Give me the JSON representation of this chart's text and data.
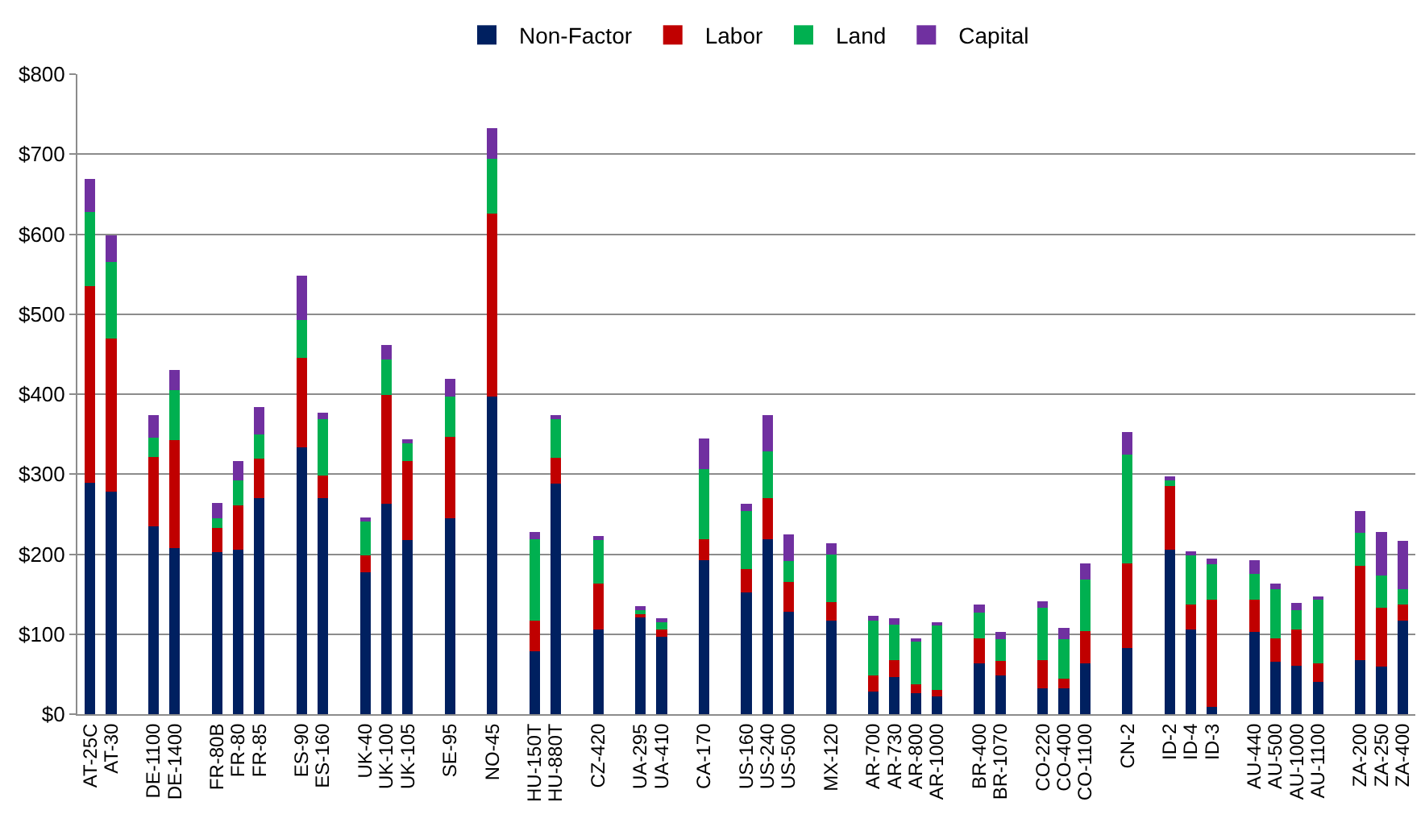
{
  "chart_data": {
    "type": "bar",
    "stacked": true,
    "categories": [
      "AT-25C",
      "AT-30",
      null,
      "DE-1100",
      "DE-1400",
      null,
      "FR-80B",
      "FR-80",
      "FR-85",
      null,
      "ES-90",
      "ES-160",
      null,
      "UK-40",
      "UK-100",
      "UK-105",
      null,
      "SE-95",
      null,
      "NO-45",
      null,
      "HU-150T",
      "HU-880T",
      null,
      "CZ-420",
      null,
      "UA-295",
      "UA-410",
      null,
      "CA-170",
      null,
      "US-160",
      "US-240",
      "US-500",
      null,
      "MX-120",
      null,
      "AR-700",
      "AR-730",
      "AR-800",
      "AR-1000",
      null,
      "BR-400",
      "BR-1070",
      null,
      "CO-220",
      "CO-400",
      "CO-1100",
      null,
      "CN-2",
      null,
      "ID-2",
      "ID-4",
      "ID-3",
      null,
      "AU-440",
      "AU-500",
      "AU-1000",
      "AU-1100",
      null,
      "ZA-200",
      "ZA-250",
      "ZA-400"
    ],
    "series": [
      {
        "name": "Non-Factor",
        "color": "#002060",
        "values": [
          289,
          278,
          null,
          235,
          208,
          null,
          203,
          206,
          270,
          null,
          334,
          270,
          null,
          177,
          263,
          218,
          null,
          245,
          null,
          397,
          null,
          79,
          288,
          null,
          106,
          null,
          121,
          97,
          null,
          192,
          null,
          152,
          219,
          128,
          null,
          117,
          null,
          28,
          46,
          26,
          22,
          null,
          63,
          48,
          null,
          32,
          32,
          63,
          null,
          83,
          null,
          206,
          106,
          9,
          null,
          103,
          66,
          60,
          40,
          null,
          68,
          59,
          117
        ]
      },
      {
        "name": "Labor",
        "color": "#c00000",
        "values": [
          246,
          192,
          null,
          86,
          135,
          null,
          30,
          55,
          49,
          null,
          111,
          28,
          null,
          22,
          136,
          98,
          null,
          102,
          null,
          229,
          null,
          38,
          32,
          null,
          57,
          null,
          4,
          9,
          null,
          27,
          null,
          29,
          51,
          37,
          null,
          23,
          null,
          20,
          22,
          11,
          8,
          null,
          32,
          19,
          null,
          36,
          12,
          41,
          null,
          105,
          null,
          79,
          31,
          134,
          null,
          40,
          29,
          46,
          23,
          null,
          117,
          74,
          20
        ]
      },
      {
        "name": "Land",
        "color": "#00b050",
        "values": [
          93,
          95,
          null,
          25,
          62,
          null,
          12,
          31,
          31,
          null,
          48,
          71,
          null,
          42,
          44,
          23,
          null,
          50,
          null,
          68,
          null,
          102,
          49,
          null,
          56,
          null,
          5,
          9,
          null,
          87,
          null,
          73,
          58,
          26,
          null,
          60,
          null,
          69,
          44,
          55,
          81,
          null,
          32,
          27,
          null,
          65,
          50,
          64,
          null,
          136,
          null,
          8,
          62,
          44,
          null,
          32,
          61,
          24,
          82,
          null,
          42,
          40,
          19
        ]
      },
      {
        "name": "Capital",
        "color": "#7030a0",
        "values": [
          41,
          34,
          null,
          28,
          25,
          null,
          19,
          24,
          34,
          null,
          55,
          8,
          null,
          5,
          18,
          5,
          null,
          22,
          null,
          39,
          null,
          9,
          5,
          null,
          4,
          null,
          5,
          5,
          null,
          39,
          null,
          9,
          46,
          34,
          null,
          14,
          null,
          6,
          8,
          2,
          3,
          null,
          10,
          9,
          null,
          8,
          14,
          20,
          null,
          29,
          null,
          4,
          5,
          7,
          null,
          17,
          7,
          9,
          1,
          null,
          27,
          55,
          61
        ]
      }
    ],
    "ylim": [
      0,
      800
    ],
    "yticks": [
      {
        "value": 0,
        "label": "$0"
      },
      {
        "value": 100,
        "label": "$100"
      },
      {
        "value": 200,
        "label": "$200"
      },
      {
        "value": 300,
        "label": "$300"
      },
      {
        "value": 400,
        "label": "$400"
      },
      {
        "value": 500,
        "label": "$500"
      },
      {
        "value": 600,
        "label": "$600"
      },
      {
        "value": 700,
        "label": "$700"
      },
      {
        "value": 800,
        "label": "$800"
      }
    ],
    "grid": "y",
    "legend": "top"
  }
}
